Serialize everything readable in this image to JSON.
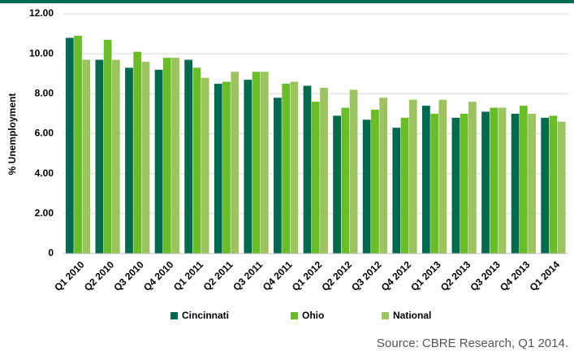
{
  "chart_data": {
    "type": "bar",
    "y_label": "% Unemployment",
    "source": "Source: CBRE Research, Q1 2014.",
    "categories": [
      "Q1 2010",
      "Q2 2010",
      "Q3 2010",
      "Q4 2010",
      "Q1 2011",
      "Q2 2011",
      "Q3 2011",
      "Q4 2011",
      "Q1 2012",
      "Q2 2012",
      "Q3 2012",
      "Q4 2012",
      "Q1 2013",
      "Q2 2013",
      "Q3 2013",
      "Q4 2013",
      "Q1 2014"
    ],
    "series": [
      {
        "name": "Cincinnati",
        "color": "#006a4d",
        "values": [
          10.8,
          9.7,
          9.3,
          9.2,
          9.7,
          8.5,
          8.7,
          7.8,
          8.4,
          6.9,
          6.7,
          6.3,
          7.4,
          6.8,
          7.1,
          7.0,
          6.8
        ]
      },
      {
        "name": "Ohio",
        "color": "#69be28",
        "values": [
          10.9,
          10.7,
          10.1,
          9.8,
          9.3,
          8.6,
          9.1,
          8.5,
          7.6,
          7.3,
          7.2,
          6.8,
          7.0,
          7.0,
          7.3,
          7.4,
          6.9
        ]
      },
      {
        "name": "National",
        "color": "#9dc35f",
        "values": [
          9.7,
          9.7,
          9.6,
          9.8,
          8.8,
          9.1,
          9.1,
          8.6,
          8.3,
          8.2,
          7.8,
          7.7,
          7.7,
          7.6,
          7.3,
          7.0,
          6.6
        ]
      }
    ],
    "ylim": [
      0,
      12
    ],
    "yticks": [
      0,
      {
        "value": 2,
        "label": "2.00"
      },
      {
        "value": 4,
        "label": "4.00"
      },
      {
        "value": 6,
        "label": "6.00"
      },
      {
        "value": 8,
        "label": "8.00"
      },
      {
        "value": 10,
        "label": "10.00"
      },
      {
        "value": 12,
        "label": "12.00"
      }
    ],
    "grid": true
  }
}
